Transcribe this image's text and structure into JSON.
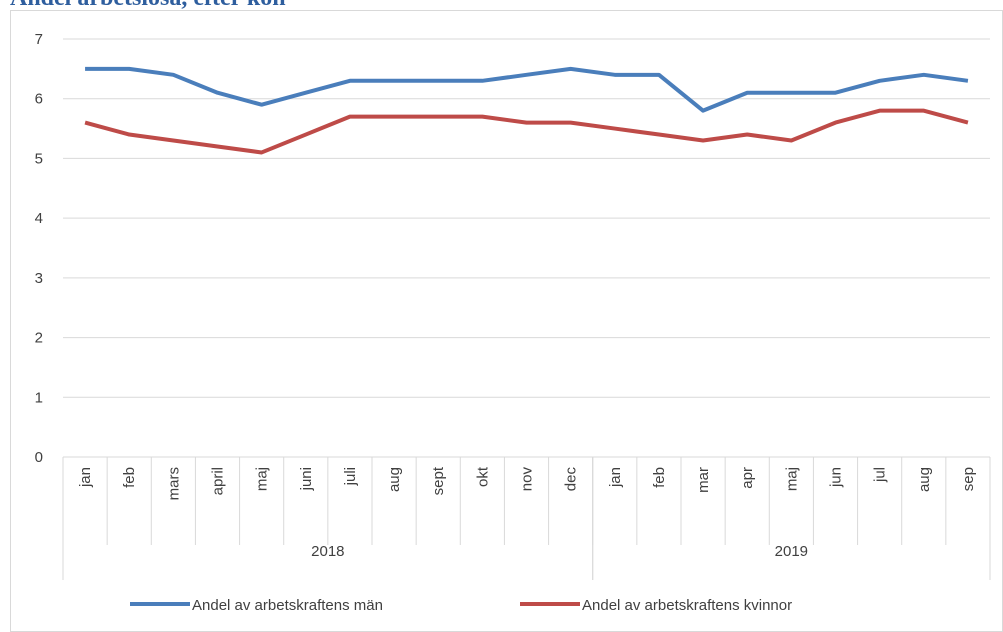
{
  "chart_data": {
    "type": "line",
    "title": "Andel arbetslösa, efter kön",
    "categories": [
      "jan",
      "feb",
      "mars",
      "april",
      "maj",
      "juni",
      "juli",
      "aug",
      "sept",
      "okt",
      "nov",
      "dec",
      "jan",
      "feb",
      "mar",
      "apr",
      "maj",
      "jun",
      "jul",
      "aug",
      "sep"
    ],
    "groups": [
      {
        "name": "2018",
        "count": 12
      },
      {
        "name": "2019",
        "count": 9
      }
    ],
    "series": [
      {
        "name": "Andel av arbetskraftens män",
        "color": "#4a7ebb",
        "values": [
          6.5,
          6.5,
          6.4,
          6.1,
          5.9,
          6.1,
          6.3,
          6.3,
          6.3,
          6.3,
          6.4,
          6.5,
          6.4,
          6.4,
          5.8,
          6.1,
          6.1,
          6.1,
          6.3,
          6.4,
          6.3
        ]
      },
      {
        "name": "Andel av arbetskraftens kvinnor",
        "color": "#be4b48",
        "values": [
          5.6,
          5.4,
          5.3,
          5.2,
          5.1,
          5.4,
          5.7,
          5.7,
          5.7,
          5.7,
          5.6,
          5.6,
          5.5,
          5.4,
          5.3,
          5.4,
          5.3,
          5.6,
          5.8,
          5.8,
          5.6
        ]
      }
    ],
    "ylim": [
      0,
      7
    ],
    "yticks": [
      0,
      1,
      2,
      3,
      4,
      5,
      6,
      7
    ],
    "grid": true,
    "legend": "bottom"
  }
}
